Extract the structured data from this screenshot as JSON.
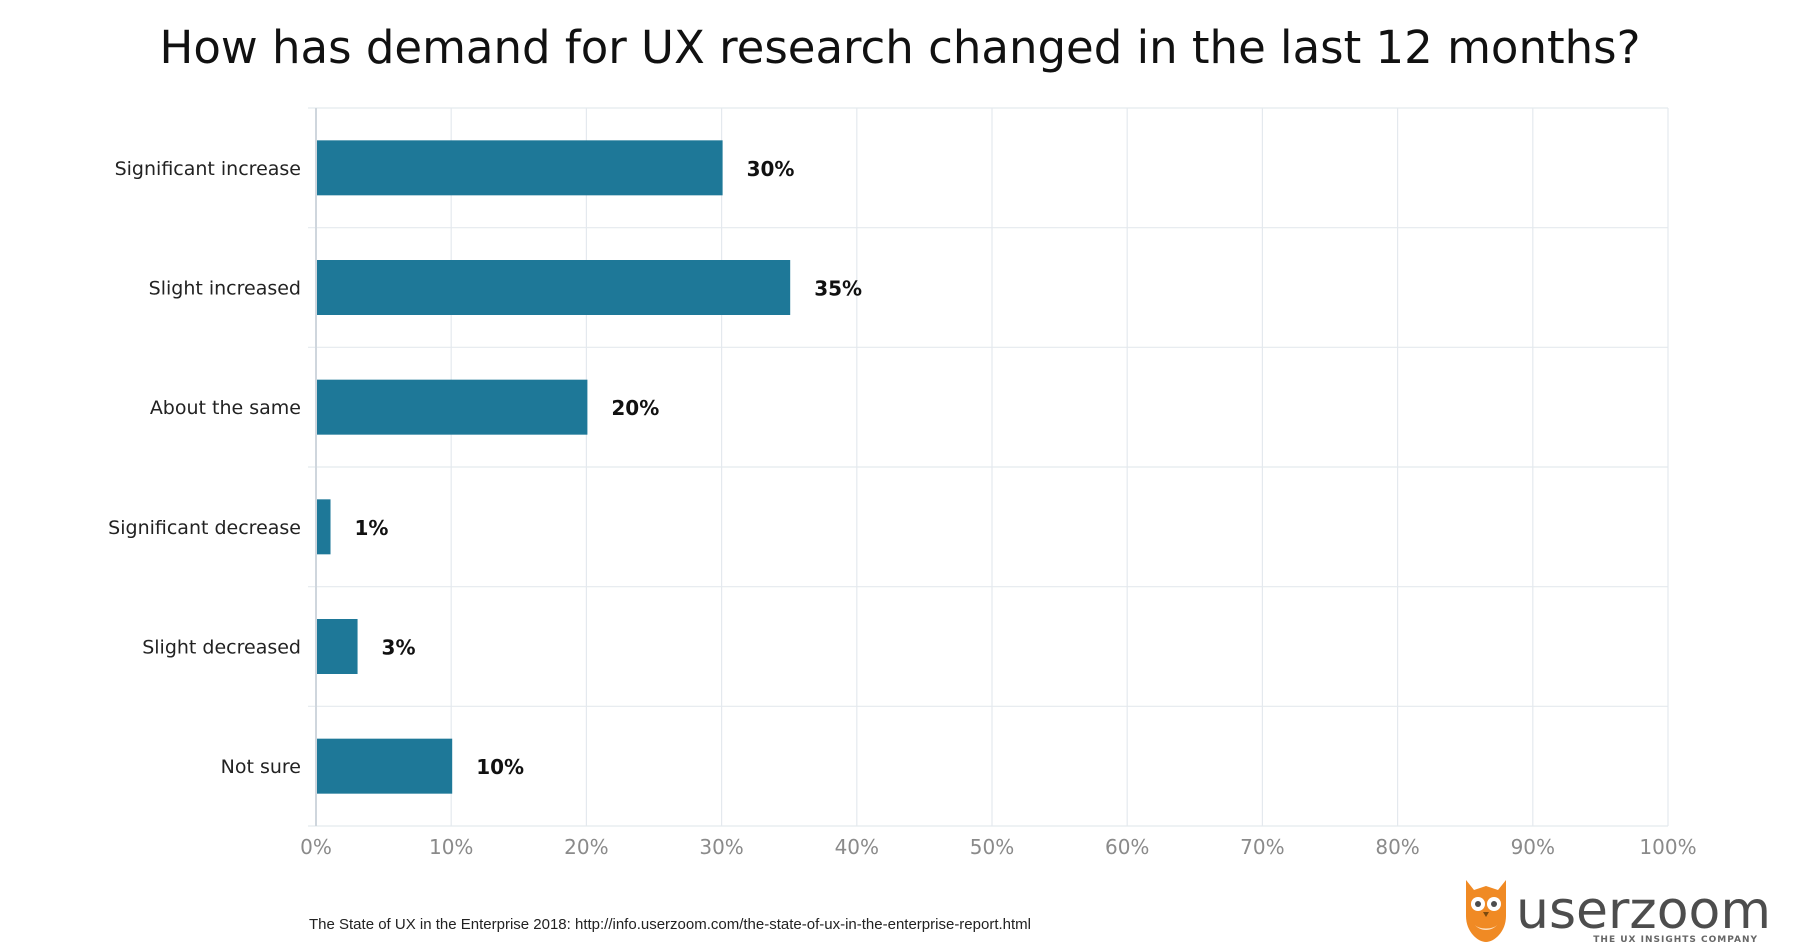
{
  "colors": {
    "bar": "#1e7898",
    "logo_orange": "#f08a24",
    "logo_text": "#4d4d4d"
  },
  "source_note": "The State of UX in the Enterprise 2018: http://info.userzoom.com/the-state-of-ux-in-the-enterprise-report.html",
  "logo": {
    "icon": "owl-icon",
    "name": "userzoom",
    "tagline": "THE UX INSIGHTS COMPANY"
  },
  "chart_data": {
    "type": "bar",
    "orientation": "horizontal",
    "title": "How has demand for UX research changed in the last 12 months?",
    "xlabel": "",
    "ylabel": "",
    "categories": [
      "Significant increase",
      "Slight increased",
      "About the same",
      "Significant decrease",
      "Slight decreased",
      "Not sure"
    ],
    "values": [
      30,
      35,
      20,
      1,
      3,
      10
    ],
    "value_labels": [
      "30%",
      "35%",
      "20%",
      "1%",
      "3%",
      "10%"
    ],
    "xlim": [
      0,
      100
    ],
    "x_ticks": [
      "0%",
      "10%",
      "20%",
      "30%",
      "40%",
      "50%",
      "60%",
      "70%",
      "80%",
      "90%",
      "100%"
    ],
    "grid": true,
    "legend": "none"
  }
}
